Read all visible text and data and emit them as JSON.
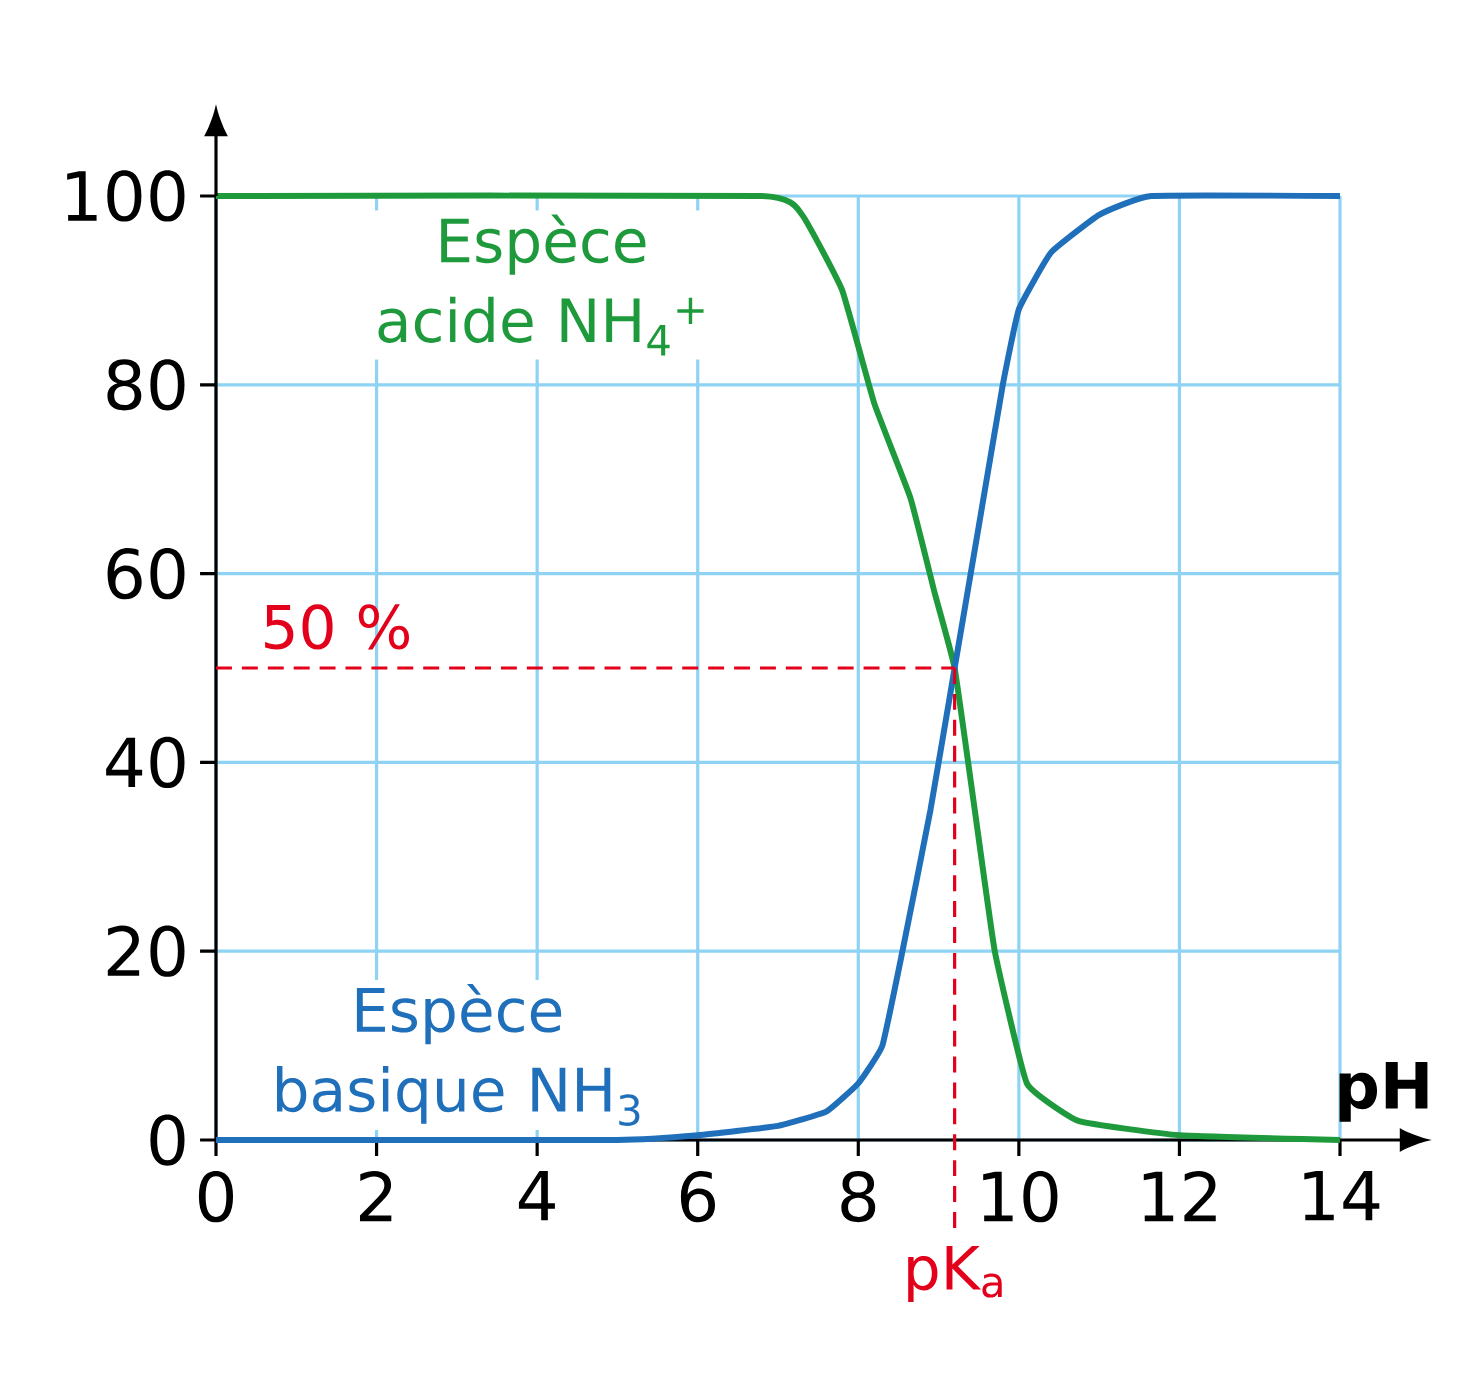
{
  "chart_data": {
    "type": "line",
    "xlabel": "pH",
    "xlim": [
      0,
      14
    ],
    "xticks": [
      0,
      2,
      4,
      6,
      8,
      10,
      12,
      14
    ],
    "ylim": [
      0,
      100
    ],
    "yticks": [
      0,
      20,
      40,
      60,
      80,
      100
    ],
    "grid": true,
    "line_style": "solid",
    "series": [
      {
        "name": "Espèce acide NH$_{4}$$^{+}$",
        "color": "#1e9a3c",
        "x": [
          0,
          6.8,
          7.3,
          7.8,
          8.2,
          8.65,
          8.95,
          9.2,
          9.45,
          9.7,
          10.1,
          10.75,
          12,
          14
        ],
        "values": [
          100,
          100,
          98,
          90,
          78,
          68,
          58,
          50,
          35,
          20,
          6,
          2,
          0.5,
          0
        ]
      },
      {
        "name": "Espèce basique NH$_{3}$",
        "color": "#1f6fba",
        "x": [
          0,
          5,
          6,
          7,
          7.6,
          8,
          8.3,
          8.55,
          8.9,
          9.2,
          9.5,
          9.8,
          10,
          10.4,
          11,
          11.65,
          14
        ],
        "values": [
          0,
          0,
          0.5,
          1.5,
          3,
          6,
          10,
          20,
          35,
          50,
          65,
          80,
          88,
          94,
          98,
          100,
          100
        ]
      }
    ],
    "ref_lines": [
      {
        "axis": "y",
        "value": 50,
        "label": "50 %",
        "color": "#e3001b",
        "line_style": "dashed"
      },
      {
        "axis": "x",
        "value": 9.2,
        "label": "pK$_{a}$",
        "color": "#e3001b",
        "line_style": "dashed"
      }
    ]
  }
}
